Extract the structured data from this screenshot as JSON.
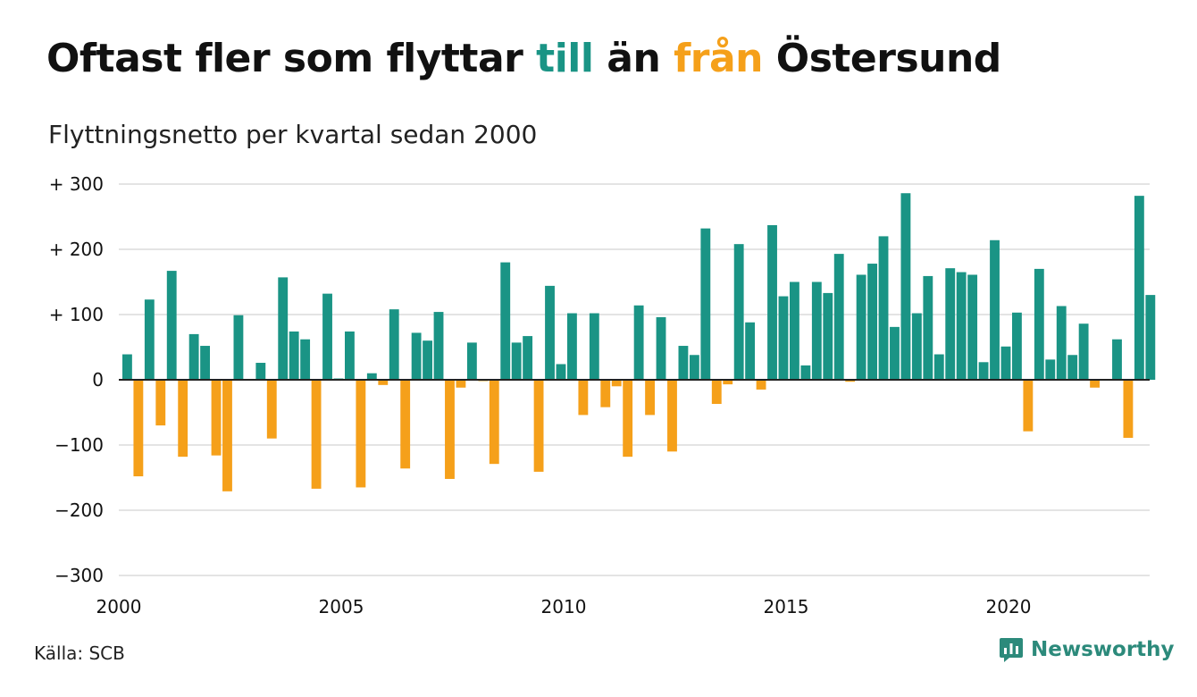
{
  "title": {
    "part1": "Oftast fler som flyttar ",
    "part2": "till",
    "part3": " än ",
    "part4": "från",
    "part5": " Östersund"
  },
  "subtitle": "Flyttningsnetto per kvartal sedan 2000",
  "source": "Källa: SCB",
  "brand": {
    "name": "Newsworthy",
    "icon": "newsworthy-logo-icon"
  },
  "colors": {
    "positive": "#1a9485",
    "negative": "#f5a01a",
    "grid": "#dcdcdc",
    "zero": "#222222",
    "brand": "#2c8a7b"
  },
  "chart_data": {
    "type": "bar",
    "xlabel": "",
    "ylabel": "",
    "x_start": 2000,
    "ylim": [
      -300,
      300
    ],
    "y_ticks": [
      300,
      200,
      100,
      0,
      -100,
      -200,
      -300
    ],
    "y_tick_labels": [
      "+ 300",
      "+ 200",
      "+ 100",
      "0",
      "−100",
      "−200",
      "−300"
    ],
    "x_ticks": [
      2000,
      2005,
      2010,
      2015,
      2020
    ],
    "x_tick_labels": [
      "2000",
      "2005",
      "2010",
      "2015",
      "2020"
    ],
    "grid": true,
    "values": [
      39,
      -148,
      123,
      -70,
      167,
      -118,
      70,
      52,
      -116,
      -171,
      99,
      0,
      26,
      -90,
      157,
      74,
      62,
      -167,
      132,
      2,
      74,
      -165,
      10,
      -8,
      108,
      -136,
      72,
      60,
      104,
      -152,
      -12,
      57,
      -2,
      -129,
      180,
      57,
      67,
      -141,
      144,
      24,
      102,
      -54,
      102,
      -42,
      -10,
      -118,
      114,
      -54,
      96,
      -110,
      52,
      38,
      232,
      -37,
      -7,
      208,
      88,
      -15,
      237,
      128,
      150,
      22,
      150,
      133,
      193,
      -3,
      161,
      178,
      220,
      81,
      286,
      102,
      159,
      39,
      171,
      165,
      161,
      27,
      214,
      51,
      103,
      -79,
      170,
      31,
      113,
      38,
      86,
      -12,
      0,
      62,
      -89,
      282,
      130
    ]
  }
}
